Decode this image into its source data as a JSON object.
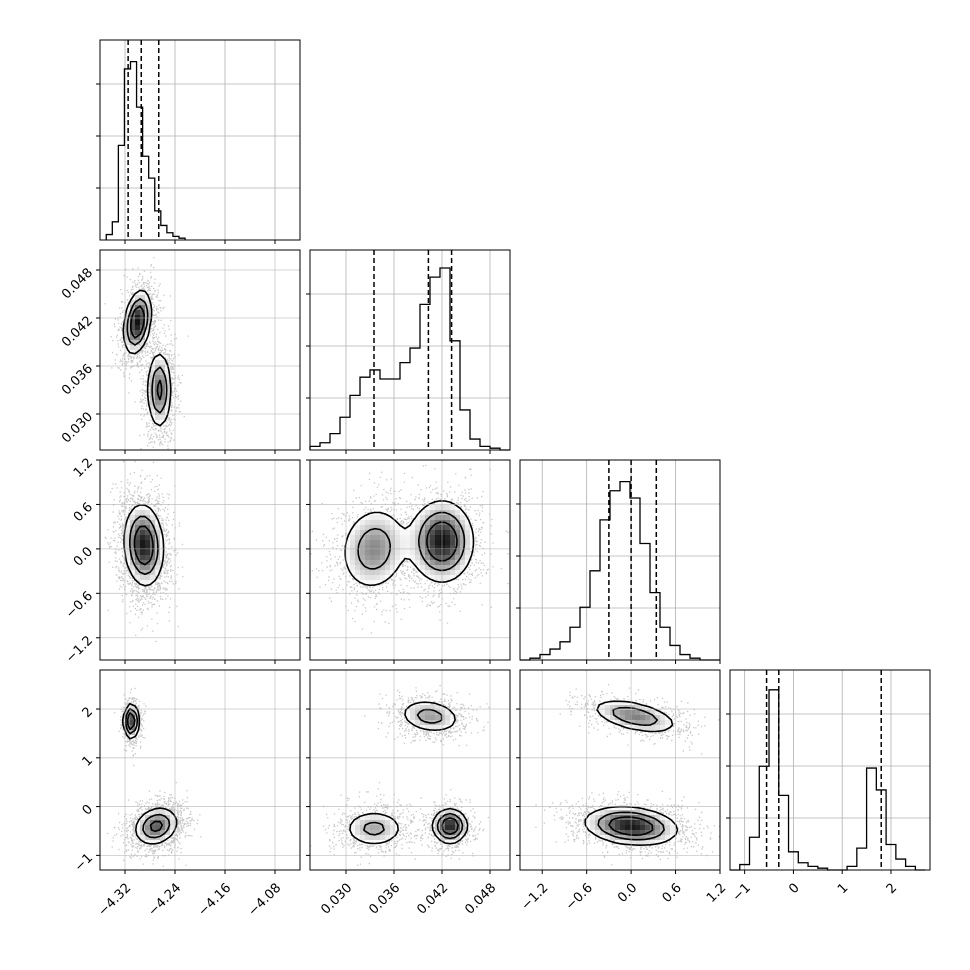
{
  "chart_data": {
    "type": "corner",
    "grid": true,
    "parameters": [
      {
        "index": 0,
        "range": [
          -4.36,
          -4.04
        ],
        "ticks": [
          -4.32,
          -4.24,
          -4.16,
          -4.08
        ],
        "tick_labels": [
          "−4.32",
          "−4.24",
          "−4.16",
          "−4.08"
        ],
        "quantiles": [
          -4.315,
          -4.294,
          -4.266
        ],
        "histogram": {
          "start": -4.35,
          "bin_width": 0.0097,
          "counts": [
            0.03,
            0.1,
            0.52,
            0.94,
            0.98,
            0.73,
            0.46,
            0.34,
            0.16,
            0.08,
            0.04,
            0.02,
            0.01
          ]
        }
      },
      {
        "index": 1,
        "range": [
          0.0255,
          0.0505
        ],
        "ticks": [
          0.03,
          0.036,
          0.042,
          0.048
        ],
        "tick_labels": [
          "0.030",
          "0.036",
          "0.042",
          "0.048"
        ],
        "quantiles": [
          0.0335,
          0.0403,
          0.0432
        ],
        "histogram": {
          "start": 0.0255,
          "bin_width": 0.00125,
          "counts": [
            0.02,
            0.04,
            0.09,
            0.18,
            0.3,
            0.4,
            0.44,
            0.39,
            0.39,
            0.48,
            0.56,
            0.8,
            0.95,
            1.0,
            0.6,
            0.22,
            0.06,
            0.02,
            0.01,
            0.0
          ]
        }
      },
      {
        "index": 2,
        "range": [
          -1.5,
          1.2
        ],
        "ticks": [
          -1.2,
          -0.6,
          0.0,
          0.6,
          1.2
        ],
        "tick_labels": [
          "−1.2",
          "−0.6",
          "0.0",
          "0.6",
          "1.2"
        ],
        "quantiles": [
          -0.3,
          0.0,
          0.34
        ],
        "histogram": {
          "start": -1.5,
          "bin_width": 0.135,
          "counts": [
            0.0,
            0.01,
            0.03,
            0.06,
            0.1,
            0.18,
            0.29,
            0.49,
            0.77,
            0.93,
            0.98,
            0.89,
            0.64,
            0.37,
            0.18,
            0.08,
            0.03,
            0.01,
            0.0,
            0.0
          ]
        }
      },
      {
        "index": 3,
        "range": [
          -1.3,
          2.8
        ],
        "ticks": [
          -1,
          0,
          1,
          2
        ],
        "tick_labels": [
          "−1",
          "0",
          "1",
          "2"
        ],
        "quantiles": [
          -0.55,
          -0.3,
          1.8
        ],
        "histogram": {
          "start": -1.3,
          "bin_width": 0.2,
          "counts": [
            0.0,
            0.03,
            0.18,
            0.57,
            0.99,
            0.41,
            0.1,
            0.04,
            0.02,
            0.01,
            0.0,
            0.0,
            0.02,
            0.12,
            0.56,
            0.44,
            0.14,
            0.06,
            0.02,
            0.0
          ]
        }
      }
    ],
    "pairs": [
      {
        "row": 1,
        "col": 0,
        "components": [
          {
            "mx": -4.3,
            "my": 0.0415,
            "sx": 0.011,
            "sy": 0.002,
            "rho": 0.3,
            "w": 0.55
          },
          {
            "mx": -4.265,
            "my": 0.033,
            "sx": 0.01,
            "sy": 0.0025,
            "rho": 0.0,
            "w": 0.45
          }
        ]
      },
      {
        "row": 2,
        "col": 0,
        "components": [
          {
            "mx": -4.29,
            "my": 0.05,
            "sx": 0.016,
            "sy": 0.28,
            "rho": -0.1,
            "w": 1.0
          }
        ]
      },
      {
        "row": 2,
        "col": 1,
        "components": [
          {
            "mx": 0.0335,
            "my": 0.0,
            "sx": 0.0022,
            "sy": 0.3,
            "rho": 0.1,
            "w": 0.4
          },
          {
            "mx": 0.042,
            "my": 0.1,
            "sx": 0.002,
            "sy": 0.28,
            "rho": 0.0,
            "w": 0.6
          }
        ]
      },
      {
        "row": 3,
        "col": 0,
        "components": [
          {
            "mx": -4.31,
            "my": 1.75,
            "sx": 0.006,
            "sy": 0.18,
            "rho": 0.0,
            "w": 0.3
          },
          {
            "mx": -4.27,
            "my": -0.4,
            "sx": 0.018,
            "sy": 0.2,
            "rho": 0.2,
            "w": 0.7
          }
        ]
      },
      {
        "row": 3,
        "col": 1,
        "components": [
          {
            "mx": 0.0405,
            "my": 1.85,
            "sx": 0.002,
            "sy": 0.18,
            "rho": -0.2,
            "w": 0.32
          },
          {
            "mx": 0.0335,
            "my": -0.45,
            "sx": 0.002,
            "sy": 0.2,
            "rho": 0.0,
            "w": 0.33
          },
          {
            "mx": 0.043,
            "my": -0.4,
            "sx": 0.0011,
            "sy": 0.18,
            "rho": 0.0,
            "w": 0.35
          }
        ]
      },
      {
        "row": 3,
        "col": 2,
        "components": [
          {
            "mx": 0.05,
            "my": 1.85,
            "sx": 0.3,
            "sy": 0.18,
            "rho": -0.5,
            "w": 0.32
          },
          {
            "mx": 0.0,
            "my": -0.4,
            "sx": 0.32,
            "sy": 0.2,
            "rho": -0.2,
            "w": 0.68
          }
        ]
      }
    ]
  }
}
